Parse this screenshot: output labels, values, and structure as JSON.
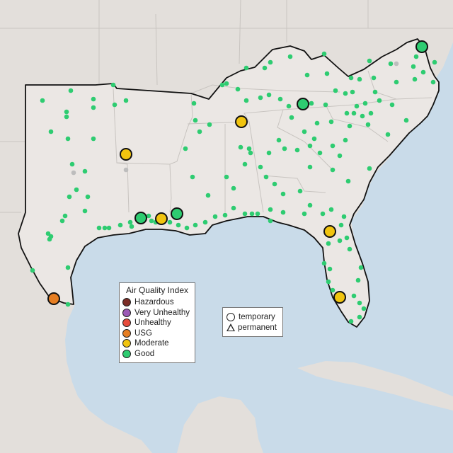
{
  "colors": {
    "water": "#c9dbe9",
    "land": "#ebe7e4",
    "outside_land": "#e3dfdb",
    "good": "#2ecc71",
    "moderate": "#f1c40f",
    "usg": "#e67e22",
    "unhealthy": "#e74c3c",
    "very_unhealthy": "#9b59b6",
    "hazardous": "#7b2d26",
    "inactive": "#bdbdbd"
  },
  "legend": {
    "title": "Air Quality Index",
    "items": [
      {
        "label": "Hazardous",
        "color": "#7b2d26"
      },
      {
        "label": "Very Unhealthy",
        "color": "#9b59b6"
      },
      {
        "label": "Unhealthy",
        "color": "#e74c3c"
      },
      {
        "label": "USG",
        "color": "#e67e22"
      },
      {
        "label": "Moderate",
        "color": "#f1c40f"
      },
      {
        "label": "Good",
        "color": "#2ecc71"
      }
    ]
  },
  "monitor_legend": {
    "temporary": "temporary",
    "permanent": "permanent"
  },
  "highlighted_monitors": [
    {
      "aqi": "Good",
      "name": "monitor-ne-virginia"
    },
    {
      "aqi": "Good",
      "name": "monitor-tennessee"
    },
    {
      "aqi": "Good",
      "name": "monitor-louisiana-1"
    },
    {
      "aqi": "Good",
      "name": "monitor-louisiana-2"
    },
    {
      "aqi": "Moderate",
      "name": "monitor-alabama"
    },
    {
      "aqi": "Moderate",
      "name": "monitor-arkansas"
    },
    {
      "aqi": "Moderate",
      "name": "monitor-louisiana-3"
    },
    {
      "aqi": "Moderate",
      "name": "monitor-florida-north"
    },
    {
      "aqi": "Moderate",
      "name": "monitor-florida-south"
    },
    {
      "aqi": "USG",
      "name": "monitor-south-texas"
    }
  ]
}
